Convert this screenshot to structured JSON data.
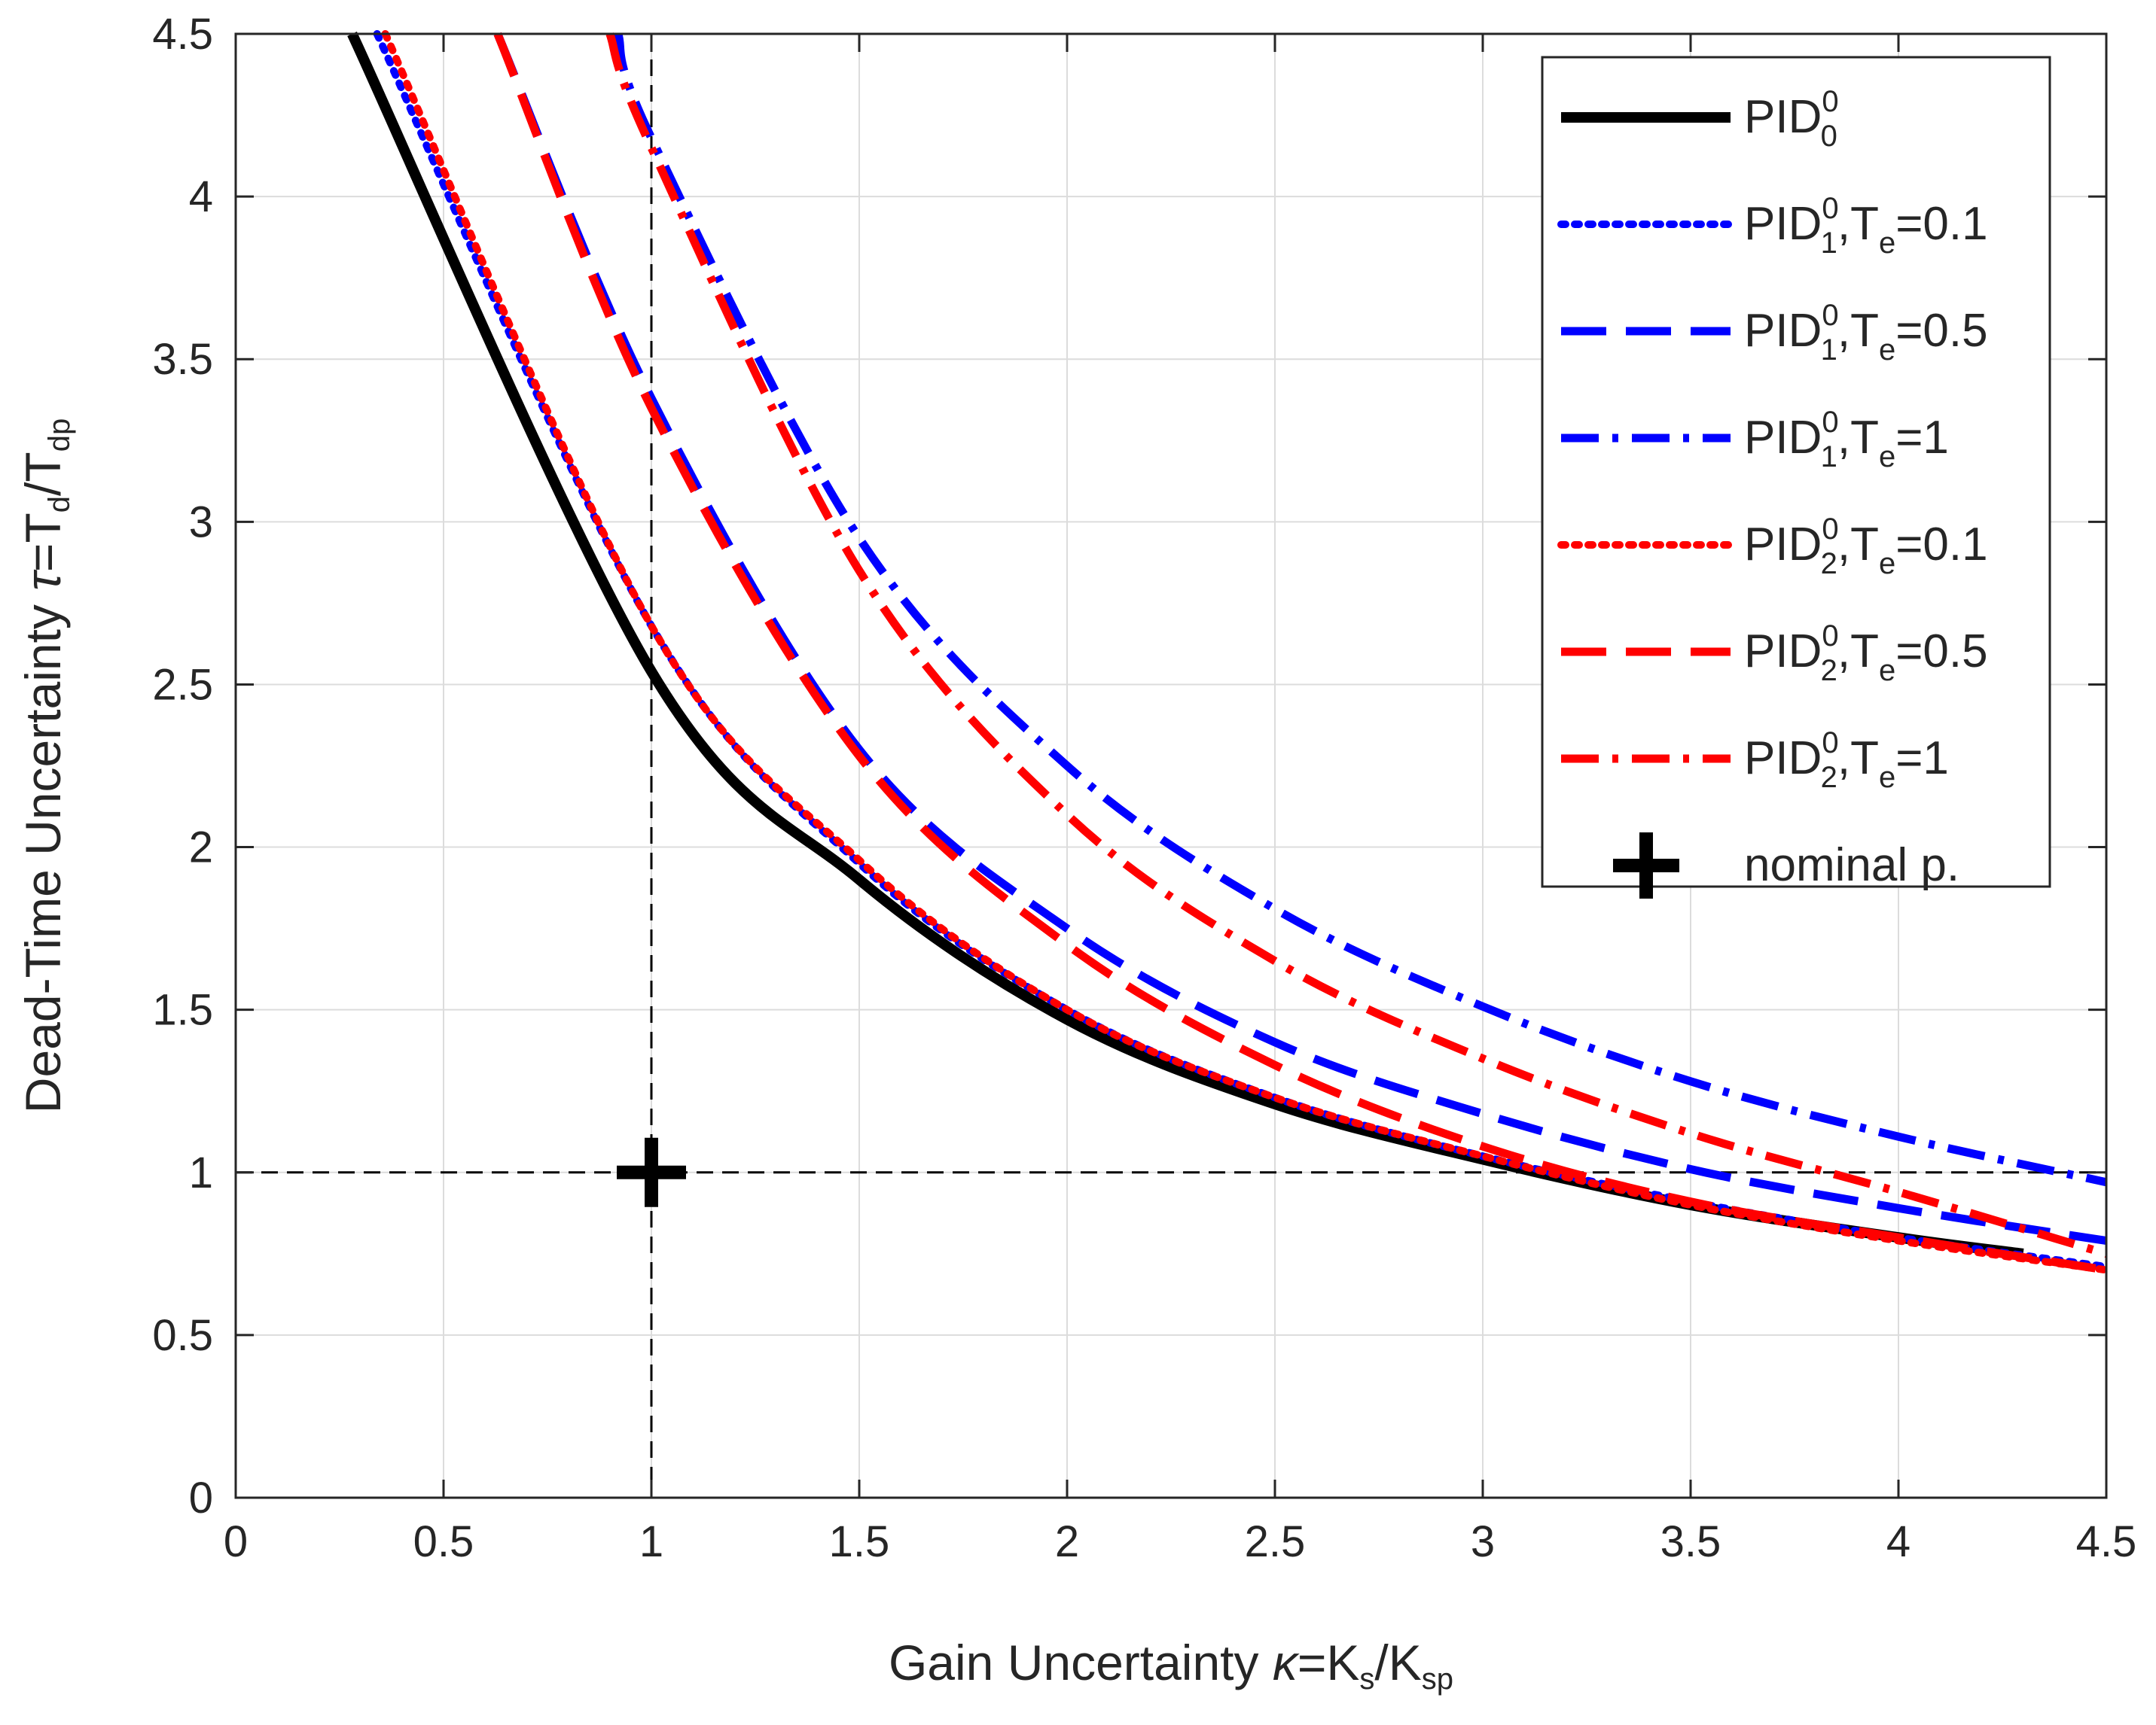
{
  "chart_data": {
    "type": "line",
    "xlabel": {
      "main": "Gain Uncertainty ",
      "greek": "κ",
      "eq": "=K",
      "sub1": "s",
      "slash": "/K",
      "sub2": "sp"
    },
    "ylabel": {
      "main": "Dead-Time Uncertainty ",
      "greek": "τ",
      "eq": "=T",
      "sub1": "d",
      "slash": "/T",
      "sub2": "dp"
    },
    "xlim": [
      0,
      4.5
    ],
    "ylim": [
      0,
      4.5
    ],
    "grid": true,
    "x_ticks": [
      "0",
      "0.5",
      "1",
      "1.5",
      "2",
      "2.5",
      "3",
      "3.5",
      "4",
      "4.5"
    ],
    "y_ticks": [
      "0",
      "0.5",
      "1",
      "1.5",
      "2",
      "2.5",
      "3",
      "3.5",
      "4",
      "4.5"
    ],
    "reference_lines": {
      "x": 1,
      "y": 1
    },
    "nominal_point": {
      "x": 1,
      "y": 1,
      "label": "nominal p."
    },
    "legend_position": "top-right",
    "series": [
      {
        "name": "PID",
        "sup": "0",
        "sub": "0",
        "param": "",
        "color": "#000000",
        "style": "solid",
        "x_start": 0.28,
        "x": [
          1,
          1.5,
          2,
          2.5,
          3,
          3.5,
          4,
          4.3
        ],
        "y": [
          2.54,
          1.9,
          1.47,
          1.21,
          1.04,
          0.9,
          0.8,
          0.75
        ]
      },
      {
        "name": "PID",
        "sup": "0",
        "sub": "1",
        "param": ",T",
        "param_sub": "e",
        "value": "=0.1",
        "color": "#0000ff",
        "style": "dotted",
        "x_start": 0.34,
        "x": [
          1,
          1.5,
          2,
          2.5,
          3,
          3.5,
          4,
          4.5
        ],
        "y": [
          2.68,
          1.95,
          1.5,
          1.23,
          1.05,
          0.91,
          0.8,
          0.71
        ]
      },
      {
        "name": "PID",
        "sup": "0",
        "sub": "1",
        "param": ",T",
        "param_sub": "e",
        "value": "=0.5",
        "color": "#0000ff",
        "style": "dashed",
        "x_start": 0.63,
        "x": [
          1,
          1.5,
          2,
          2.5,
          3,
          3.5,
          4,
          4.5
        ],
        "y": [
          3.38,
          2.3,
          1.75,
          1.4,
          1.18,
          1.01,
          0.89,
          0.79
        ]
      },
      {
        "name": "PID",
        "sup": "0",
        "sub": "1",
        "param": ",T",
        "param_sub": "e",
        "value": "=1",
        "color": "#0000ff",
        "style": "dashdot",
        "x_start": 0.92,
        "x": [
          1,
          1.5,
          2,
          2.5,
          3,
          3.5,
          4,
          4.5
        ],
        "y": [
          4.18,
          2.95,
          2.25,
          1.81,
          1.51,
          1.28,
          1.11,
          0.97
        ]
      },
      {
        "name": "PID",
        "sup": "0",
        "sub": "2",
        "param": ",T",
        "param_sub": "e",
        "value": "=0.1",
        "color": "#ff0000",
        "style": "dotted",
        "x_start": 0.36,
        "x": [
          1,
          1.5,
          2,
          2.5,
          3,
          3.5,
          4,
          4.5
        ],
        "y": [
          2.68,
          1.96,
          1.5,
          1.23,
          1.05,
          0.9,
          0.79,
          0.7
        ]
      },
      {
        "name": "PID",
        "sup": "0",
        "sub": "2",
        "param": ",T",
        "param_sub": "e",
        "value": "=0.5",
        "color": "#ff0000",
        "style": "dashed",
        "x_start": 0.63,
        "x": [
          1,
          1.5,
          2,
          2.5,
          3,
          3.5,
          4,
          4.5
        ],
        "y": [
          3.35,
          2.28,
          1.7,
          1.33,
          1.08,
          0.91,
          0.8,
          0.7
        ]
      },
      {
        "name": "PID",
        "sup": "0",
        "sub": "2",
        "param": ",T",
        "param_sub": "e",
        "value": "=1",
        "color": "#ff0000",
        "style": "dashdot",
        "x_start": 0.9,
        "x": [
          1,
          1.5,
          2,
          2.5,
          3,
          3.5,
          4,
          4.5
        ],
        "y": [
          4.15,
          2.85,
          2.1,
          1.65,
          1.35,
          1.12,
          0.94,
          0.75
        ]
      }
    ]
  }
}
